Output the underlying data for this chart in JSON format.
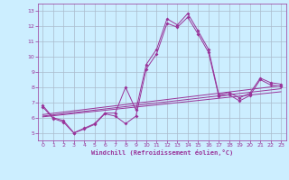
{
  "xlabel": "Windchill (Refroidissement éolien,°C)",
  "bg_color": "#cceeff",
  "grid_color": "#aabbcc",
  "line_color": "#993399",
  "xlim": [
    -0.5,
    23.5
  ],
  "ylim": [
    4.5,
    13.5
  ],
  "yticks": [
    5,
    6,
    7,
    8,
    9,
    10,
    11,
    12,
    13
  ],
  "xticks": [
    0,
    1,
    2,
    3,
    4,
    5,
    6,
    7,
    8,
    9,
    10,
    11,
    12,
    13,
    14,
    15,
    16,
    17,
    18,
    19,
    20,
    21,
    22,
    23
  ],
  "series_main": {
    "x": [
      0,
      1,
      2,
      3,
      4,
      5,
      6,
      7,
      8,
      9,
      10,
      11,
      12,
      13,
      14,
      15,
      16,
      17,
      18,
      19,
      20,
      21,
      22,
      23
    ],
    "y": [
      6.8,
      6.0,
      5.8,
      5.0,
      5.3,
      5.6,
      6.3,
      6.3,
      8.0,
      6.5,
      9.5,
      10.5,
      12.5,
      12.1,
      12.85,
      11.7,
      10.5,
      7.5,
      7.65,
      7.3,
      7.6,
      8.6,
      8.3,
      8.2
    ]
  },
  "series_sub": {
    "x": [
      0,
      1,
      2,
      3,
      4,
      5,
      6,
      7,
      8,
      9,
      10,
      11,
      12,
      13,
      14,
      15,
      16,
      17,
      18,
      19,
      20,
      21,
      22,
      23
    ],
    "y": [
      6.7,
      5.95,
      5.7,
      4.98,
      5.25,
      5.55,
      6.25,
      6.1,
      5.6,
      6.1,
      9.2,
      10.2,
      12.2,
      11.95,
      12.6,
      11.5,
      10.3,
      7.4,
      7.5,
      7.1,
      7.45,
      8.5,
      8.15,
      8.05
    ]
  },
  "linear1": {
    "x": [
      0,
      23
    ],
    "y": [
      6.1,
      7.9
    ]
  },
  "linear2": {
    "x": [
      0,
      23
    ],
    "y": [
      6.2,
      8.1
    ]
  },
  "linear3": {
    "x": [
      0,
      23
    ],
    "y": [
      6.05,
      7.7
    ]
  }
}
